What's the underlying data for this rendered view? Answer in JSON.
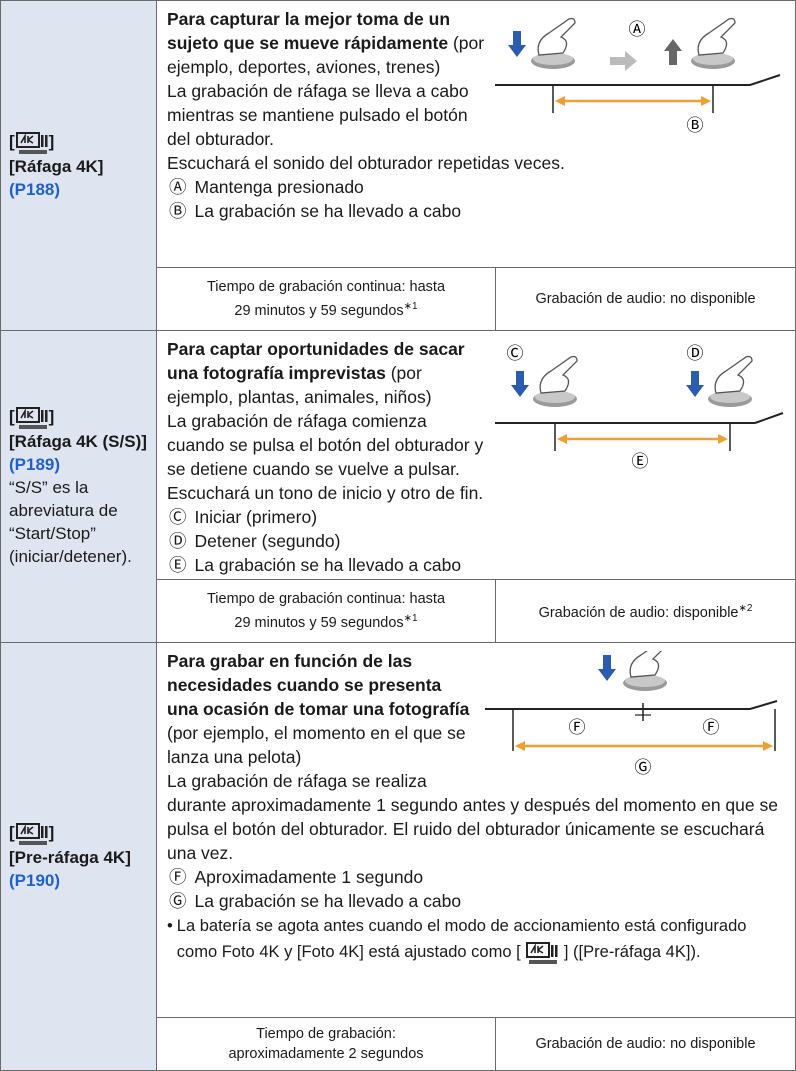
{
  "rows": [
    {
      "mode": {
        "bracket_open": "[",
        "bracket_close": "]",
        "name": "[Ráfaga 4K]",
        "page": "(P188)"
      },
      "heading": "Para capturar la mejor toma de un sujeto que se mueve rápidamente",
      "heading_note": "(por ejemplo, deportes, aviones, trenes)",
      "paragraphs": [
        "La grabación de ráfaga se lleva a cabo mientras se mantiene pulsado el botón del obturador.",
        "Escuchará el sonido del obturador repetidas veces."
      ],
      "legend": [
        {
          "mark": "Ⓐ",
          "text": "Mantenga presionado"
        },
        {
          "mark": "Ⓑ",
          "text": "La grabación se ha llevado a cabo"
        }
      ],
      "recording_time": {
        "text": "Tiempo de grabación continua: hasta 29 minutos y 59 segundos",
        "note": "∗1"
      },
      "audio": {
        "text": "Grabación de audio: no disponible"
      }
    },
    {
      "mode": {
        "bracket_open": "[",
        "bracket_close": "]",
        "name": "[Ráfaga 4K (S/S)]",
        "page": "(P189)",
        "description": "“S/S” es la abreviatura de “Start/Stop” (iniciar/detener)."
      },
      "heading": "Para captar oportunidades de sacar una fotografía imprevistas",
      "heading_note": "(por ejemplo, plantas, animales, niños)",
      "paragraphs": [
        "La grabación de ráfaga comienza cuando se pulsa el botón del obturador y se detiene cuando se vuelve a pulsar.",
        "Escuchará un tono de inicio y otro de fin."
      ],
      "legend": [
        {
          "mark": "Ⓒ",
          "text": "Iniciar (primero)"
        },
        {
          "mark": "Ⓓ",
          "text": "Detener (segundo)"
        },
        {
          "mark": "Ⓔ",
          "text": "La grabación se ha llevado a cabo"
        }
      ],
      "recording_time": {
        "text": "Tiempo de grabación continua: hasta 29 minutos y 59 segundos",
        "note": "∗1"
      },
      "audio": {
        "text": "Grabación de audio: disponible",
        "note": "∗2"
      }
    },
    {
      "mode": {
        "bracket_open": "[",
        "bracket_close": "]",
        "name": "[Pre-ráfaga 4K]",
        "page": "(P190)"
      },
      "heading": "Para grabar en función de las necesidades cuando se presenta una ocasión de tomar una fotografía",
      "heading_note": "(por ejemplo, el momento en el que se lanza una pelota)",
      "paragraphs": [
        "La grabación de ráfaga se realiza durante aproximadamente 1 segundo antes y después del momento en que se pulsa el botón del obturador. El ruido del obturador únicamente se escuchará una vez."
      ],
      "legend": [
        {
          "mark": "Ⓕ",
          "text": "Aproximadamente 1 segundo"
        },
        {
          "mark": "Ⓖ",
          "text": "La grabación se ha llevado a cabo"
        }
      ],
      "bullet": {
        "symbol": "•",
        "before": "La batería se agota antes cuando el modo de accionamiento está configurado como Foto 4K y [Foto 4K] está ajustado como [",
        "after": "] ([Pre-ráfaga 4K])."
      },
      "recording_time": {
        "text": "Tiempo de grabación: aproximadamente 2 segundos"
      },
      "audio": {
        "text": "Grabación de audio: no disponible"
      }
    }
  ]
}
